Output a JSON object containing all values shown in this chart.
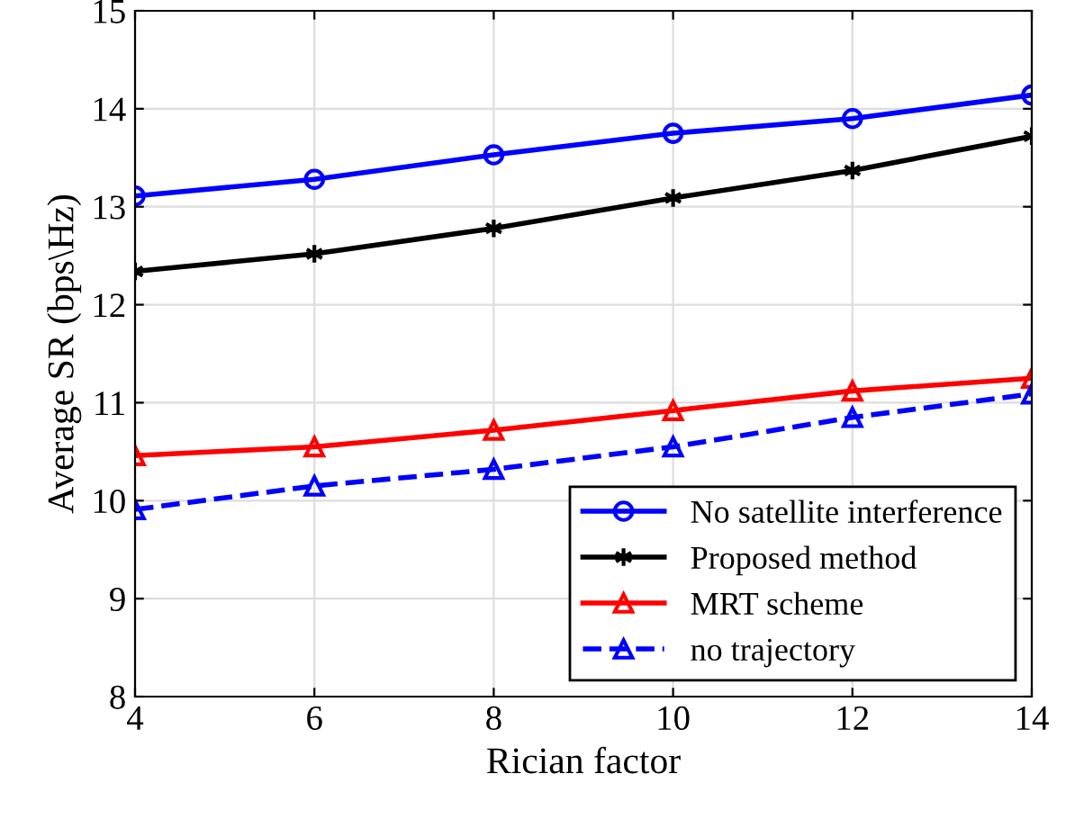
{
  "chart_data": {
    "type": "line",
    "xlabel": "Rician factor",
    "ylabel": "Average SR (bps\\Hz)",
    "x": [
      4,
      6,
      8,
      10,
      12,
      14
    ],
    "series": [
      {
        "name": "No satellite interference",
        "color": "#0000ff",
        "marker": "circle",
        "line_style": "solid",
        "values": [
          13.11,
          13.28,
          13.53,
          13.75,
          13.9,
          14.14
        ]
      },
      {
        "name": "Proposed method",
        "color": "#000000",
        "marker": "cross",
        "line_style": "solid",
        "values": [
          12.34,
          12.52,
          12.78,
          13.09,
          13.37,
          13.72
        ]
      },
      {
        "name": "MRT scheme",
        "color": "#ff0000",
        "marker": "triangle",
        "line_style": "solid",
        "values": [
          10.46,
          10.55,
          10.72,
          10.92,
          11.12,
          11.25
        ]
      },
      {
        "name": "no trajectory",
        "color": "#0000ff",
        "marker": "triangle",
        "line_style": "dashed",
        "values": [
          9.91,
          10.15,
          10.32,
          10.55,
          10.85,
          11.09
        ]
      }
    ],
    "xlim": [
      4,
      14
    ],
    "xticks": [
      4,
      6,
      8,
      10,
      12,
      14
    ],
    "ylim": [
      8,
      15
    ],
    "yticks": [
      8,
      9,
      10,
      11,
      12,
      13,
      14,
      15
    ],
    "grid": true,
    "legend": "bottom right"
  }
}
